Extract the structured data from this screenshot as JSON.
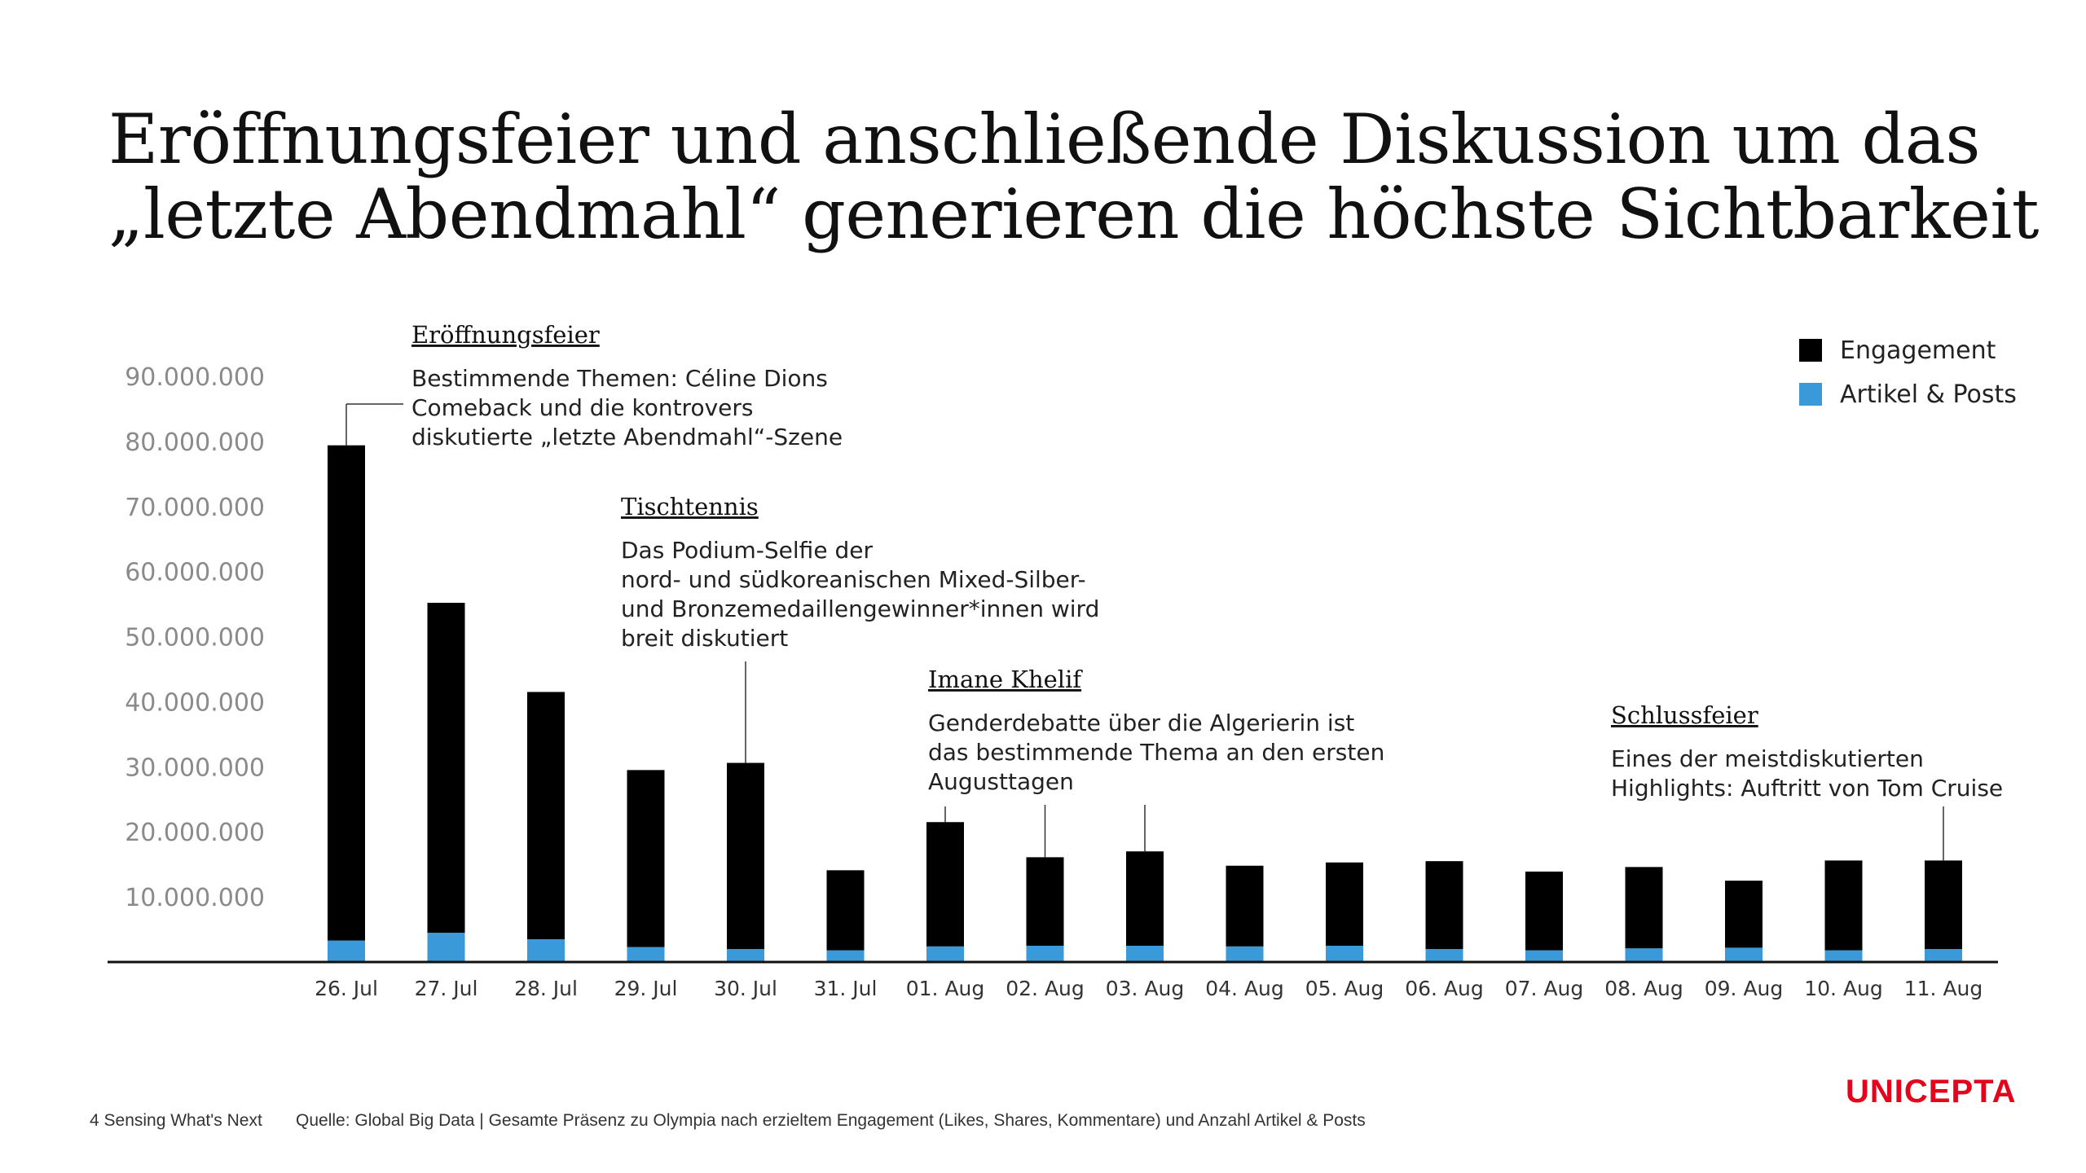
{
  "title_line1": "Eröffnungsfeier und anschließende Diskussion um das",
  "title_line2": "„letzte Abendmahl“ generieren die höchste Sichtbarkeit",
  "chart_data": {
    "type": "bar",
    "stacked": true,
    "categories": [
      "26. Jul",
      "27. Jul",
      "28. Jul",
      "29. Jul",
      "30. Jul",
      "31. Jul",
      "01. Aug",
      "02. Aug",
      "03. Aug",
      "04. Aug",
      "05. Aug",
      "06. Aug",
      "07. Aug",
      "08. Aug",
      "09. Aug",
      "10. Aug",
      "11. Aug"
    ],
    "series": [
      {
        "name": "Artikel & Posts",
        "color": "#3a9ad9",
        "values": [
          3300000,
          4500000,
          3500000,
          2300000,
          2000000,
          1800000,
          2400000,
          2500000,
          2500000,
          2400000,
          2500000,
          2000000,
          1800000,
          2100000,
          2200000,
          1800000,
          2000000
        ]
      },
      {
        "name": "Engagement",
        "color": "#000000",
        "values": [
          76100000,
          50700000,
          38000000,
          27200000,
          28600000,
          12300000,
          19100000,
          13600000,
          14500000,
          12400000,
          12800000,
          13500000,
          12100000,
          12500000,
          10300000,
          13800000,
          13600000
        ]
      }
    ],
    "totals": [
      79400000,
      55200000,
      41500000,
      29500000,
      30600000,
      14100000,
      21500000,
      16100000,
      17000000,
      14800000,
      15300000,
      15500000,
      13900000,
      14600000,
      12500000,
      15600000,
      15600000
    ],
    "y_ticks": [
      "10.000.000",
      "20.000.000",
      "30.000.000",
      "40.000.000",
      "50.000.000",
      "60.000.000",
      "70.000.000",
      "80.000.000",
      "90.000.000"
    ],
    "ylim": [
      0,
      90000000
    ],
    "legend_position": "top-right",
    "grid": false
  },
  "annotations": [
    {
      "title": "Eröffnungsfeier",
      "lines": [
        "Bestimmende Themen: Céline Dions",
        "Comeback und die kontrovers",
        "diskutierte „letzte Abendmahl“-Szene"
      ],
      "category": "26. Jul"
    },
    {
      "title": "Tischtennis",
      "lines": [
        "Das Podium-Selfie der",
        "nord- und südkoreanischen Mixed-Silber-",
        "und Bronzemedaillengewinner*innen wird",
        "breit diskutiert"
      ],
      "category": "30. Jul"
    },
    {
      "title": "Imane Khelif",
      "lines": [
        "Genderdebatte über die Algerierin ist",
        "das bestimmende Thema an den ersten",
        "Augusttagen"
      ],
      "categories": [
        "01. Aug",
        "02. Aug",
        "03. Aug"
      ]
    },
    {
      "title": "Schlussfeier",
      "lines": [
        "Eines der meistdiskutierten",
        "Highlights: Auftritt von Tom Cruise"
      ],
      "category": "11. Aug"
    }
  ],
  "footer": {
    "page": "4 Sensing What's Next",
    "source": "Quelle: Global Big Data | Gesamte Präsenz zu Olympia nach erzieltem Engagement (Likes, Shares, Kommentare) und Anzahl Artikel & Posts"
  },
  "brand": "UNICEPTA"
}
